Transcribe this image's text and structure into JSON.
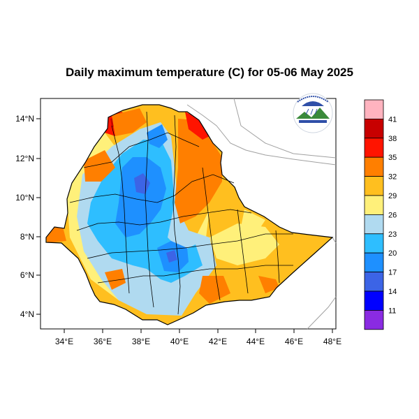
{
  "title": "Daily maximum temperature (C) for 05-06 May 2025",
  "map": {
    "x_ticks": [
      "34°E",
      "36°E",
      "38°E",
      "40°E",
      "42°E",
      "44°E",
      "46°E",
      "48°E"
    ],
    "y_ticks": [
      "14°N",
      "12°N",
      "10°N",
      "8°N",
      "6°N",
      "4°N"
    ],
    "logo_icon": "ethiopian-meteorology-institute-logo"
  },
  "legend": {
    "labels": [
      "41",
      "38",
      "35",
      "32",
      "29",
      "26",
      "23",
      "20",
      "17",
      "14",
      "11"
    ],
    "colors": [
      "#ffb3bf",
      "#c80000",
      "#ff1400",
      "#ff7f00",
      "#ffbf1f",
      "#fff07a",
      "#b0daf0",
      "#2ebeff",
      "#1e90ff",
      "#3c64e6",
      "#0000ff",
      "#8a2be2"
    ]
  }
}
